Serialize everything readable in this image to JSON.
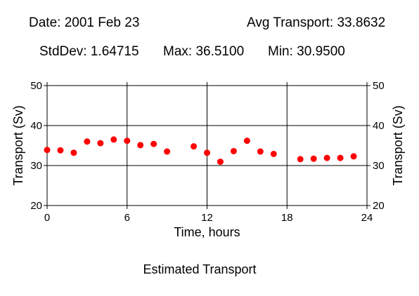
{
  "header": {
    "date": "Date: 2001 Feb 23",
    "avg": "Avg Transport: 33.8632",
    "stddev": "StdDev: 1.64715",
    "max": "Max: 36.5100",
    "min": "Min: 30.9500"
  },
  "caption": "Estimated Transport",
  "colors": {
    "points": "#ff0000",
    "grid": "#000000",
    "axis": "#000000"
  },
  "chart_data": {
    "type": "scatter",
    "title": "",
    "xlabel": "Time, hours",
    "ylabel": "Transport (Sv)",
    "y2label": "Transport (Sv)",
    "xlim": [
      0,
      24
    ],
    "ylim": [
      20,
      50
    ],
    "xticks": [
      0,
      6,
      12,
      18,
      24
    ],
    "yticks": [
      20,
      30,
      40,
      50
    ],
    "grid": true,
    "series": [
      {
        "x": [
          0,
          1,
          2,
          3,
          4,
          5,
          6,
          7,
          8,
          9,
          11,
          12,
          13,
          14,
          15,
          16,
          17,
          19,
          20,
          21,
          22,
          23
        ],
        "y": [
          33.9,
          33.8,
          33.2,
          36.0,
          35.6,
          36.51,
          36.2,
          35.1,
          35.4,
          33.5,
          34.8,
          33.2,
          30.95,
          33.6,
          36.2,
          33.5,
          32.9,
          31.6,
          31.7,
          31.9,
          31.9,
          32.3
        ]
      }
    ]
  }
}
